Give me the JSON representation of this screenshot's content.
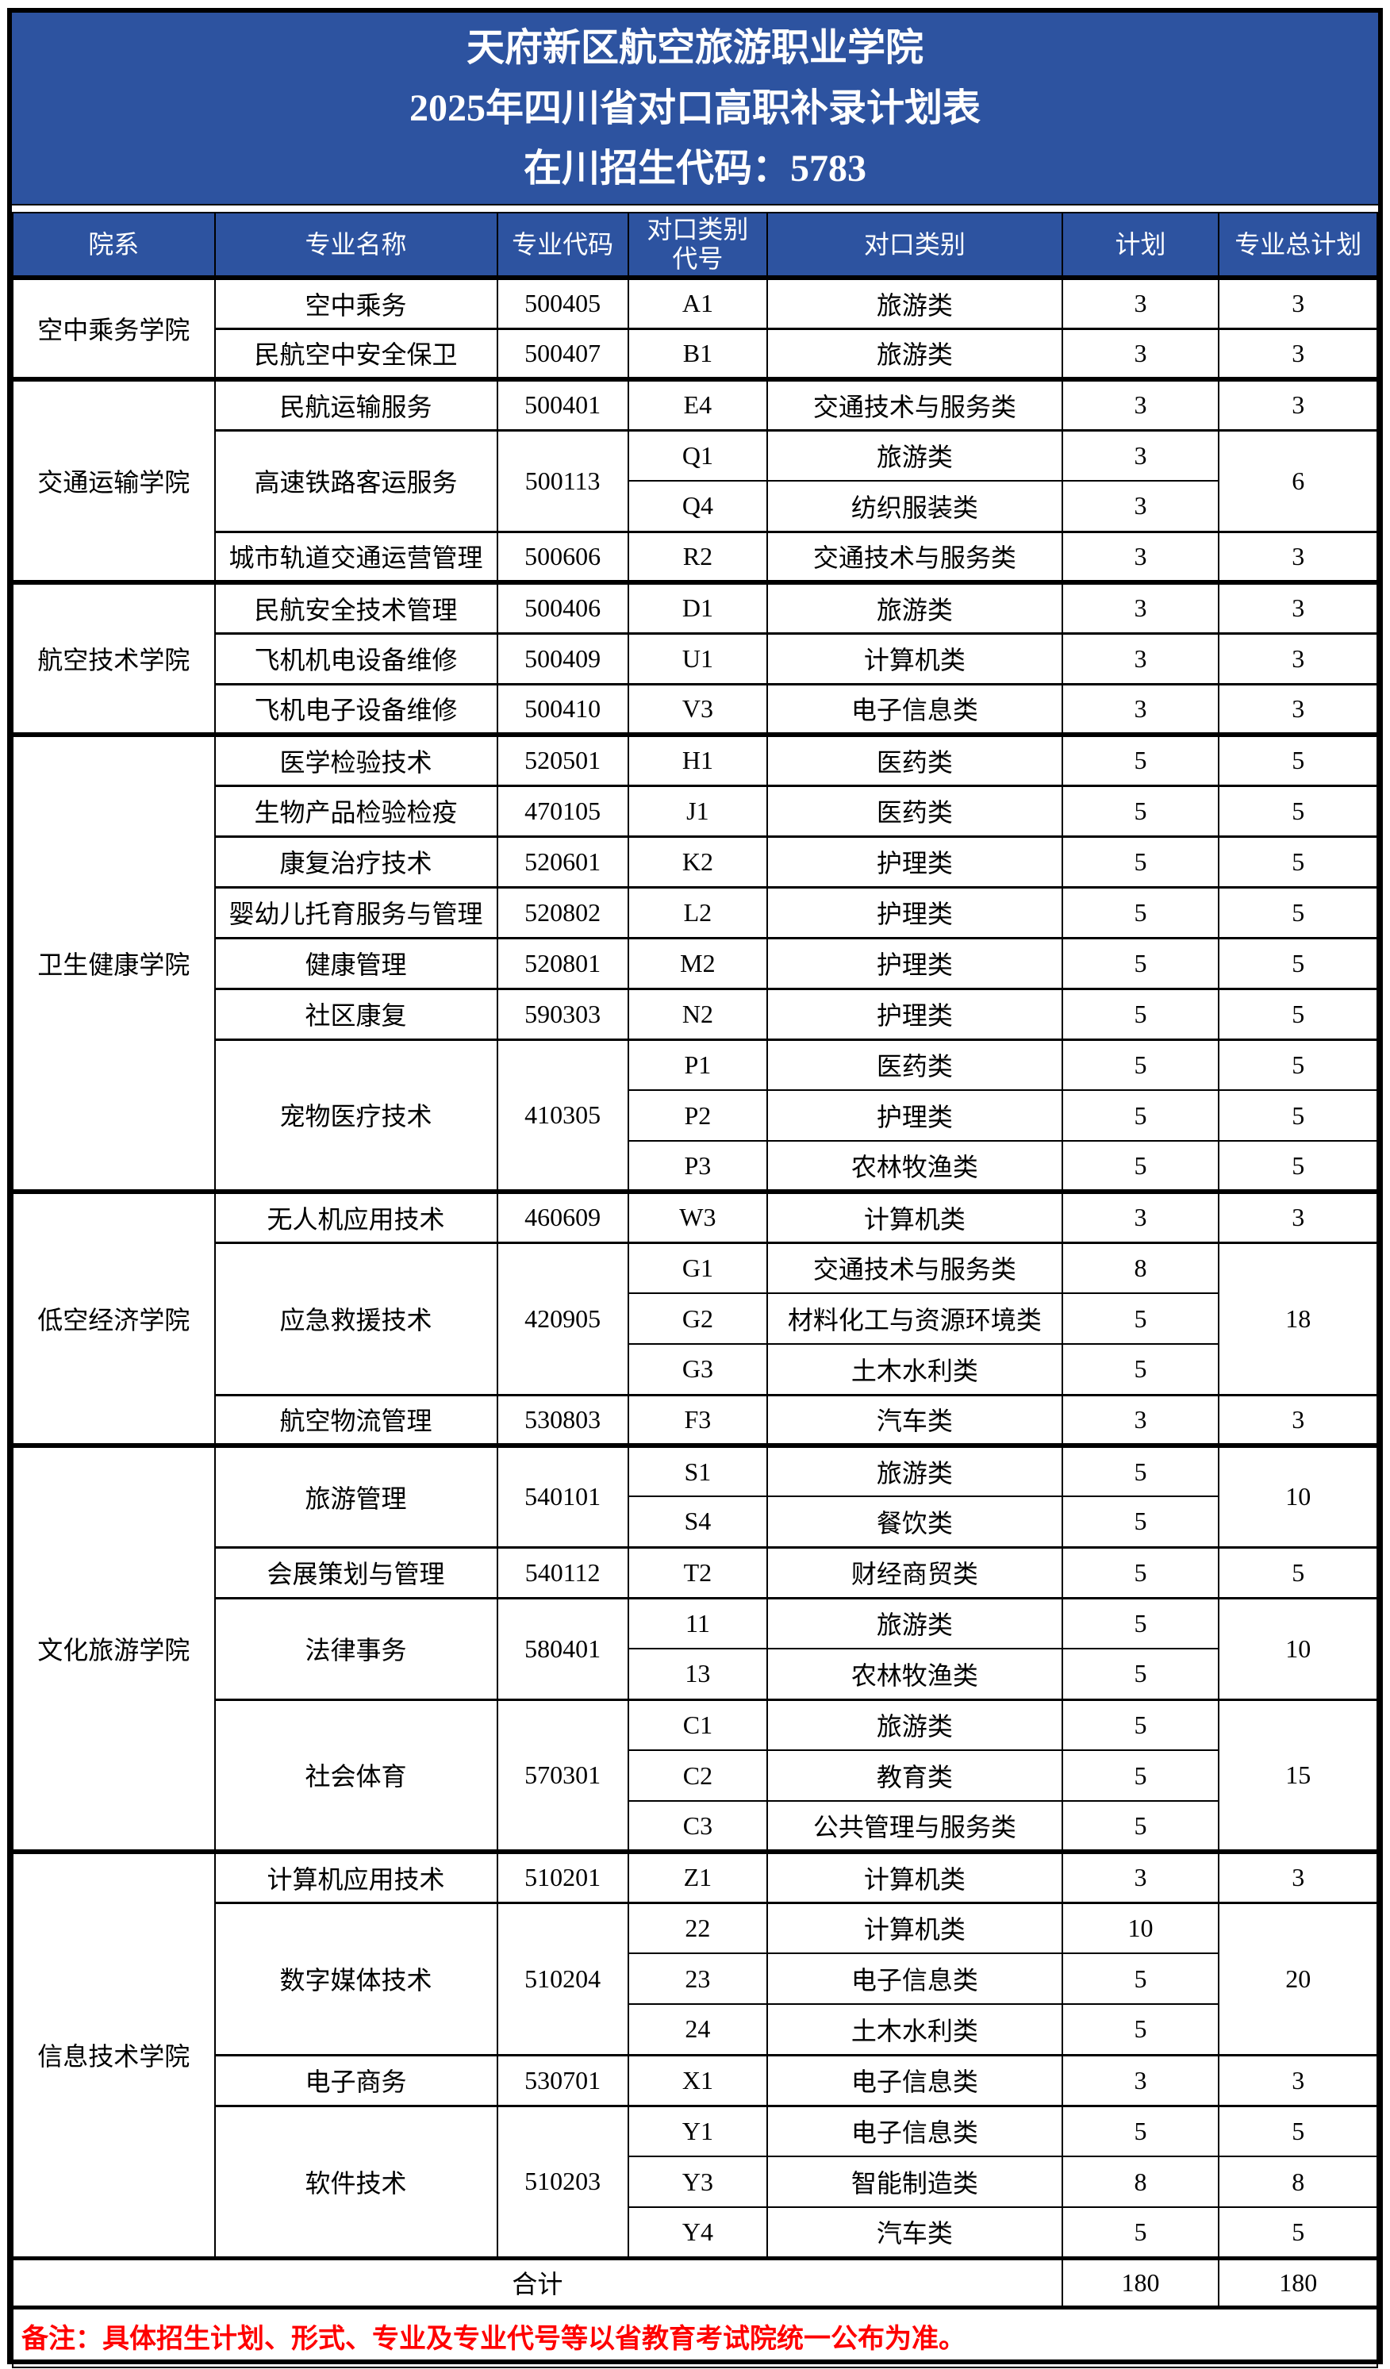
{
  "title": {
    "line1": "天府新区航空旅游职业学院",
    "line2": "2025年四川省对口高职补录计划表",
    "line3": "在川招生代码：5783"
  },
  "colors": {
    "header_blue": "#2D53A0",
    "note_red": "#FF0000",
    "border_black": "#000000"
  },
  "table": {
    "columns": [
      "院系",
      "专业名称",
      "专业代码",
      "对口类别\n代号",
      "对口类别",
      "计划",
      "专业总计划"
    ],
    "colleges": [
      {
        "name": "空中乘务学院",
        "majors": [
          {
            "name": "空中乘务",
            "code": "500405",
            "total": null,
            "entries": [
              {
                "cat_code": "A1",
                "category": "旅游类",
                "plan": "3",
                "total": "3"
              }
            ]
          },
          {
            "name": "民航空中安全保卫",
            "code": "500407",
            "total": null,
            "entries": [
              {
                "cat_code": "B1",
                "category": "旅游类",
                "plan": "3",
                "total": "3"
              }
            ]
          }
        ]
      },
      {
        "name": "交通运输学院",
        "majors": [
          {
            "name": "民航运输服务",
            "code": "500401",
            "total": null,
            "entries": [
              {
                "cat_code": "E4",
                "category": "交通技术与服务类",
                "plan": "3",
                "total": "3"
              }
            ]
          },
          {
            "name": "高速铁路客运服务",
            "code": "500113",
            "total": "6",
            "entries": [
              {
                "cat_code": "Q1",
                "category": "旅游类",
                "plan": "3"
              },
              {
                "cat_code": "Q4",
                "category": "纺织服装类",
                "plan": "3"
              }
            ]
          },
          {
            "name": "城市轨道交通运营管理",
            "code": "500606",
            "total": null,
            "entries": [
              {
                "cat_code": "R2",
                "category": "交通技术与服务类",
                "plan": "3",
                "total": "3"
              }
            ]
          }
        ]
      },
      {
        "name": "航空技术学院",
        "majors": [
          {
            "name": "民航安全技术管理",
            "code": "500406",
            "total": null,
            "entries": [
              {
                "cat_code": "D1",
                "category": "旅游类",
                "plan": "3",
                "total": "3"
              }
            ]
          },
          {
            "name": "飞机机电设备维修",
            "code": "500409",
            "total": null,
            "entries": [
              {
                "cat_code": "U1",
                "category": "计算机类",
                "plan": "3",
                "total": "3"
              }
            ]
          },
          {
            "name": "飞机电子设备维修",
            "code": "500410",
            "total": null,
            "entries": [
              {
                "cat_code": "V3",
                "category": "电子信息类",
                "plan": "3",
                "total": "3"
              }
            ]
          }
        ]
      },
      {
        "name": "卫生健康学院",
        "majors": [
          {
            "name": "医学检验技术",
            "code": "520501",
            "total": null,
            "entries": [
              {
                "cat_code": "H1",
                "category": "医药类",
                "plan": "5",
                "total": "5"
              }
            ]
          },
          {
            "name": "生物产品检验检疫",
            "code": "470105",
            "total": null,
            "entries": [
              {
                "cat_code": "J1",
                "category": "医药类",
                "plan": "5",
                "total": "5"
              }
            ]
          },
          {
            "name": "康复治疗技术",
            "code": "520601",
            "total": null,
            "entries": [
              {
                "cat_code": "K2",
                "category": "护理类",
                "plan": "5",
                "total": "5"
              }
            ]
          },
          {
            "name": "婴幼儿托育服务与管理",
            "code": "520802",
            "total": null,
            "entries": [
              {
                "cat_code": "L2",
                "category": "护理类",
                "plan": "5",
                "total": "5"
              }
            ]
          },
          {
            "name": "健康管理",
            "code": "520801",
            "total": null,
            "entries": [
              {
                "cat_code": "M2",
                "category": "护理类",
                "plan": "5",
                "total": "5"
              }
            ]
          },
          {
            "name": "社区康复",
            "code": "590303",
            "total": null,
            "entries": [
              {
                "cat_code": "N2",
                "category": "护理类",
                "plan": "5",
                "total": "5"
              }
            ]
          },
          {
            "name": "宠物医疗技术",
            "code": "410305",
            "total": null,
            "entries": [
              {
                "cat_code": "P1",
                "category": "医药类",
                "plan": "5",
                "total": "5"
              },
              {
                "cat_code": "P2",
                "category": "护理类",
                "plan": "5",
                "total": "5"
              },
              {
                "cat_code": "P3",
                "category": "农林牧渔类",
                "plan": "5",
                "total": "5"
              }
            ]
          }
        ]
      },
      {
        "name": "低空经济学院",
        "majors": [
          {
            "name": "无人机应用技术",
            "code": "460609",
            "total": null,
            "entries": [
              {
                "cat_code": "W3",
                "category": "计算机类",
                "plan": "3",
                "total": "3"
              }
            ]
          },
          {
            "name": "应急救援技术",
            "code": "420905",
            "total": "18",
            "entries": [
              {
                "cat_code": "G1",
                "category": "交通技术与服务类",
                "plan": "8"
              },
              {
                "cat_code": "G2",
                "category": "材料化工与资源环境类",
                "plan": "5"
              },
              {
                "cat_code": "G3",
                "category": "土木水利类",
                "plan": "5"
              }
            ]
          },
          {
            "name": "航空物流管理",
            "code": "530803",
            "total": null,
            "entries": [
              {
                "cat_code": "F3",
                "category": "汽车类",
                "plan": "3",
                "total": "3"
              }
            ]
          }
        ]
      },
      {
        "name": "文化旅游学院",
        "majors": [
          {
            "name": "旅游管理",
            "code": "540101",
            "total": "10",
            "entries": [
              {
                "cat_code": "S1",
                "category": "旅游类",
                "plan": "5"
              },
              {
                "cat_code": "S4",
                "category": "餐饮类",
                "plan": "5"
              }
            ]
          },
          {
            "name": "会展策划与管理",
            "code": "540112",
            "total": null,
            "entries": [
              {
                "cat_code": "T2",
                "category": "财经商贸类",
                "plan": "5",
                "total": "5"
              }
            ]
          },
          {
            "name": "法律事务",
            "code": "580401",
            "total": "10",
            "entries": [
              {
                "cat_code": "11",
                "category": "旅游类",
                "plan": "5"
              },
              {
                "cat_code": "13",
                "category": "农林牧渔类",
                "plan": "5"
              }
            ]
          },
          {
            "name": "社会体育",
            "code": "570301",
            "total": "15",
            "entries": [
              {
                "cat_code": "C1",
                "category": "旅游类",
                "plan": "5"
              },
              {
                "cat_code": "C2",
                "category": "教育类",
                "plan": "5"
              },
              {
                "cat_code": "C3",
                "category": "公共管理与服务类",
                "plan": "5"
              }
            ]
          }
        ]
      },
      {
        "name": "信息技术学院",
        "majors": [
          {
            "name": "计算机应用技术",
            "code": "510201",
            "total": null,
            "entries": [
              {
                "cat_code": "Z1",
                "category": "计算机类",
                "plan": "3",
                "total": "3"
              }
            ]
          },
          {
            "name": "数字媒体技术",
            "code": "510204",
            "total": "20",
            "entries": [
              {
                "cat_code": "22",
                "category": "计算机类",
                "plan": "10"
              },
              {
                "cat_code": "23",
                "category": "电子信息类",
                "plan": "5"
              },
              {
                "cat_code": "24",
                "category": "土木水利类",
                "plan": "5"
              }
            ]
          },
          {
            "name": "电子商务",
            "code": "530701",
            "total": null,
            "entries": [
              {
                "cat_code": "X1",
                "category": "电子信息类",
                "plan": "3",
                "total": "3"
              }
            ]
          },
          {
            "name": "软件技术",
            "code": "510203",
            "total": null,
            "entries": [
              {
                "cat_code": "Y1",
                "category": "电子信息类",
                "plan": "5",
                "total": "5"
              },
              {
                "cat_code": "Y3",
                "category": "智能制造类",
                "plan": "8",
                "total": "8"
              },
              {
                "cat_code": "Y4",
                "category": "汽车类",
                "plan": "5",
                "total": "5"
              }
            ]
          }
        ]
      }
    ],
    "footer": {
      "label": "合计",
      "plan": "180",
      "total": "180"
    },
    "note": "备注：具体招生计划、形式、专业及专业代号等以省教育考试院统一公布为准。"
  }
}
